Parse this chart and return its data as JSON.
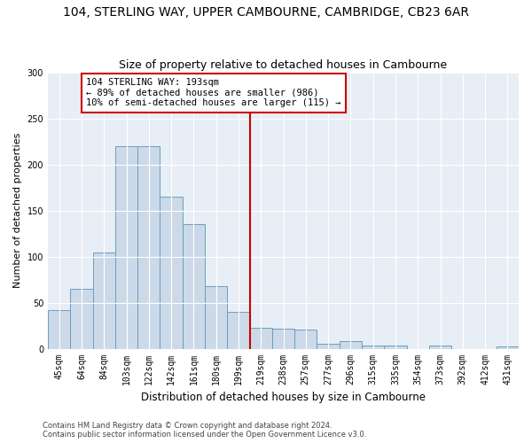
{
  "title1": "104, STERLING WAY, UPPER CAMBOURNE, CAMBRIDGE, CB23 6AR",
  "title2": "Size of property relative to detached houses in Cambourne",
  "xlabel": "Distribution of detached houses by size in Cambourne",
  "ylabel": "Number of detached properties",
  "categories": [
    "45sqm",
    "64sqm",
    "84sqm",
    "103sqm",
    "122sqm",
    "142sqm",
    "161sqm",
    "180sqm",
    "199sqm",
    "219sqm",
    "238sqm",
    "257sqm",
    "277sqm",
    "296sqm",
    "315sqm",
    "335sqm",
    "354sqm",
    "373sqm",
    "392sqm",
    "412sqm",
    "431sqm"
  ],
  "values": [
    42,
    65,
    105,
    220,
    220,
    165,
    135,
    68,
    40,
    23,
    22,
    21,
    5,
    8,
    3,
    3,
    0,
    3,
    0,
    0,
    2
  ],
  "bar_color": "#ccd9e8",
  "bar_edge_color": "#6a9ec0",
  "vline_x_idx": 8.5,
  "vline_color": "#cc0000",
  "annotation_text": "104 STERLING WAY: 193sqm\n← 89% of detached houses are smaller (986)\n10% of semi-detached houses are larger (115) →",
  "annotation_box_color": "#ffffff",
  "annotation_box_edge": "#cc0000",
  "ylim": [
    0,
    300
  ],
  "yticks": [
    0,
    50,
    100,
    150,
    200,
    250,
    300
  ],
  "footer1": "Contains HM Land Registry data © Crown copyright and database right 2024.",
  "footer2": "Contains public sector information licensed under the Open Government Licence v3.0.",
  "bg_color": "#e8eef5",
  "title1_fontsize": 10,
  "title2_fontsize": 9,
  "xlabel_fontsize": 8.5,
  "ylabel_fontsize": 8,
  "tick_fontsize": 7,
  "footer_fontsize": 6,
  "annot_fontsize": 7.5
}
